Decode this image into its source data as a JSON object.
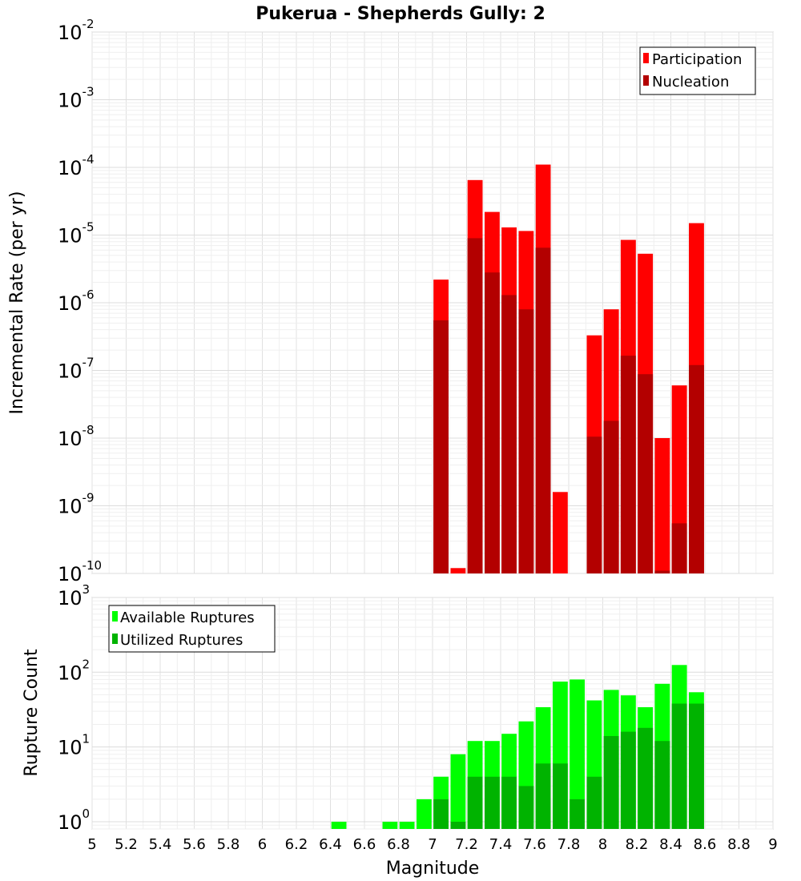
{
  "chart_data": [
    {
      "type": "bar",
      "title": "Pukerua - Shepherds Gully: 2",
      "xlabel": "",
      "ylabel": "Incremental Rate (per yr)",
      "yscale": "log",
      "xlim": [
        5,
        9
      ],
      "ylim": [
        1e-10,
        0.01
      ],
      "ytick_exponents": [
        -10,
        -9,
        -8,
        -7,
        -6,
        -5,
        -4,
        -3,
        -2
      ],
      "legend": {
        "position": "top-right",
        "entries": [
          "Participation",
          "Nucleation"
        ]
      },
      "bin_width": 0.1,
      "x": [
        7.05,
        7.15,
        7.25,
        7.35,
        7.45,
        7.55,
        7.65,
        7.75,
        7.95,
        8.05,
        8.15,
        8.25,
        8.35,
        8.45,
        8.55
      ],
      "series": [
        {
          "name": "Participation",
          "color": "#ff0000",
          "values": [
            2.2e-06,
            1.2e-10,
            6.5e-05,
            2.2e-05,
            1.3e-05,
            1.15e-05,
            0.00011,
            1.6e-09,
            3.3e-07,
            8e-07,
            8.5e-06,
            5.3e-06,
            1e-08,
            6e-08,
            1.5e-05
          ]
        },
        {
          "name": "Nucleation",
          "color": "#b30000",
          "values": [
            5.5e-07,
            null,
            9e-06,
            2.8e-06,
            1.3e-06,
            8e-07,
            6.5e-06,
            null,
            1.05e-08,
            1.8e-08,
            1.65e-07,
            8.8e-08,
            1.1e-10,
            5.5e-10,
            1.2e-07
          ]
        }
      ]
    },
    {
      "type": "bar",
      "xlabel": "Magnitude",
      "ylabel": "Rupture Count",
      "yscale": "log",
      "xlim": [
        5,
        9
      ],
      "ylim": [
        0.8,
        1000
      ],
      "ytick_exponents": [
        0,
        1,
        2,
        3
      ],
      "xticks": [
        "5",
        "5.2",
        "5.4",
        "5.6",
        "5.8",
        "6",
        "6.2",
        "6.4",
        "6.6",
        "6.8",
        "7",
        "7.2",
        "7.4",
        "7.6",
        "7.8",
        "8",
        "8.2",
        "8.4",
        "8.6",
        "8.8",
        "9"
      ],
      "legend": {
        "position": "top-left",
        "entries": [
          "Available Ruptures",
          "Utilized Ruptures"
        ]
      },
      "bin_width": 0.1,
      "x": [
        6.45,
        6.75,
        6.85,
        6.95,
        7.05,
        7.15,
        7.25,
        7.35,
        7.45,
        7.55,
        7.65,
        7.75,
        7.85,
        7.95,
        8.05,
        8.15,
        8.25,
        8.35,
        8.45,
        8.55
      ],
      "series": [
        {
          "name": "Available Ruptures",
          "color": "#00ff00",
          "values": [
            1,
            1,
            1,
            2,
            4,
            8,
            12,
            12,
            15,
            22,
            34,
            75,
            80,
            42,
            58,
            49,
            34,
            70,
            125,
            54
          ]
        },
        {
          "name": "Utilized Ruptures",
          "color": "#00b300",
          "values": [
            null,
            null,
            null,
            null,
            2,
            1,
            4,
            4,
            4,
            3,
            6,
            6,
            2,
            4,
            14,
            16,
            18,
            12,
            38,
            38
          ]
        }
      ]
    }
  ]
}
